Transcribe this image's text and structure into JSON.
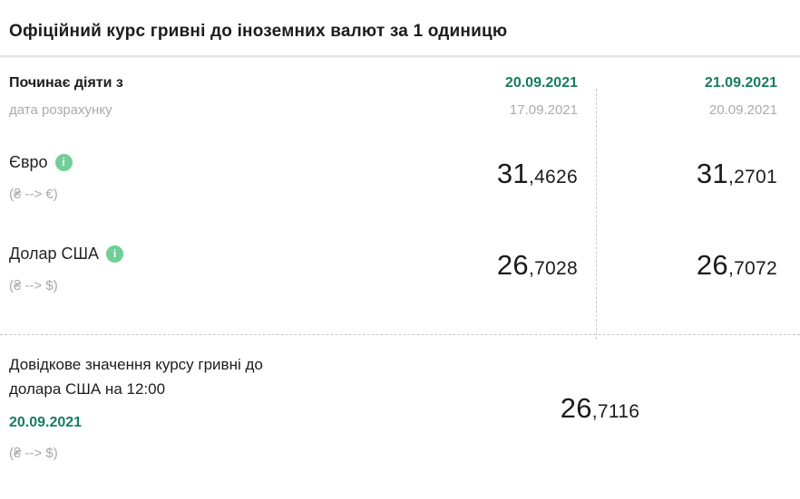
{
  "title": "Офіційний курс гривні до іноземних валют за 1 одиницю",
  "table": {
    "header": {
      "label": "Починає діяти з",
      "sublabel": "дата розрахунку",
      "columns": [
        {
          "effective_date": "20.09.2021",
          "calc_date": "17.09.2021"
        },
        {
          "effective_date": "21.09.2021",
          "calc_date": "20.09.2021"
        }
      ]
    },
    "rows": [
      {
        "name": "Євро",
        "pair": "(₴ --> €)",
        "values": [
          {
            "int": "31",
            "frac": ",4626"
          },
          {
            "int": "31",
            "frac": ",2701"
          }
        ]
      },
      {
        "name": "Долар США",
        "pair": "(₴ --> $)",
        "values": [
          {
            "int": "26",
            "frac": ",7028"
          },
          {
            "int": "26",
            "frac": ",7072"
          }
        ]
      }
    ]
  },
  "reference": {
    "label_line1": "Довідкове значення курсу гривні до",
    "label_line2": "долара США на 12:00",
    "date": "20.09.2021",
    "pair": "(₴ --> $)",
    "value": {
      "int": "26",
      "frac": ",7116"
    }
  },
  "icons": {
    "info": "i"
  },
  "colors": {
    "accent_green": "#157d60",
    "info_icon_green": "#6fcf97",
    "text_dark": "#1b1b1b",
    "text_gray": "#a8a8a8"
  }
}
